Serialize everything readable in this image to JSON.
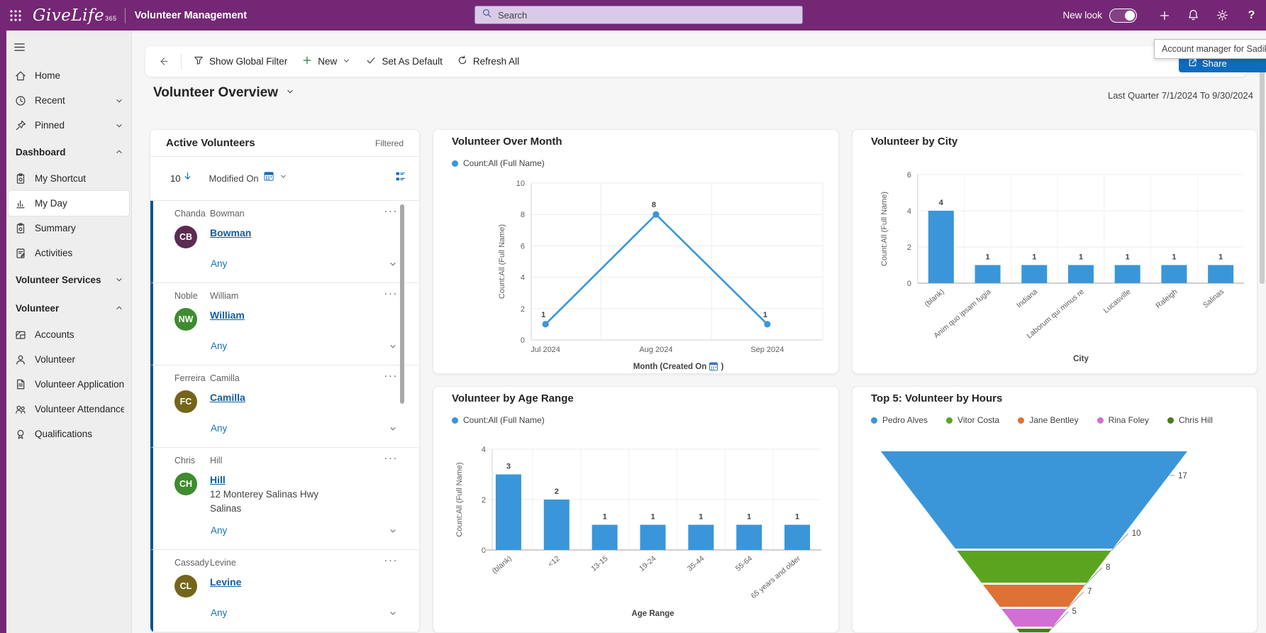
{
  "topbar": {
    "logo_text": "GiveLife",
    "logo_sub": "365",
    "app_name": "Volunteer Management",
    "search_placeholder": "Search",
    "new_look_label": "New look",
    "header_color": "#742774"
  },
  "tooltip_text": "Account manager for Sadikshy",
  "share_button": {
    "label": "Share"
  },
  "toolbar": {
    "items": [
      {
        "label": "Show Global Filter",
        "icon": "filter-icon"
      },
      {
        "label": "New",
        "icon": "plus-icon",
        "chevron": true
      },
      {
        "label": "Set As Default",
        "icon": "check-icon"
      },
      {
        "label": "Refresh All",
        "icon": "refresh-icon"
      }
    ]
  },
  "page": {
    "title": "Volunteer Overview",
    "date_filter": "Last Quarter 7/1/2024 To 9/30/2024"
  },
  "sidebar": {
    "items": [
      {
        "type": "item",
        "label": "Home",
        "icon": "home-icon"
      },
      {
        "type": "item",
        "label": "Recent",
        "icon": "clock-icon",
        "chevron": "down"
      },
      {
        "type": "item",
        "label": "Pinned",
        "icon": "pin-icon",
        "chevron": "down"
      },
      {
        "type": "group",
        "label": "Dashboard",
        "chevron": "up"
      },
      {
        "type": "item",
        "label": "My Shortcut",
        "icon": "clipboard-gear-icon"
      },
      {
        "type": "item",
        "label": "My Day",
        "icon": "chart-icon",
        "selected": true
      },
      {
        "type": "item",
        "label": "Summary",
        "icon": "clipboard-gear-icon"
      },
      {
        "type": "item",
        "label": "Activities",
        "icon": "clipboard-pencil-icon"
      },
      {
        "type": "group",
        "label": "Volunteer Services",
        "chevron": "down"
      },
      {
        "type": "group",
        "label": "Volunteer",
        "chevron": "up"
      },
      {
        "type": "item",
        "label": "Accounts",
        "icon": "accounts-icon"
      },
      {
        "type": "item",
        "label": "Volunteer",
        "icon": "person-icon"
      },
      {
        "type": "item",
        "label": "Volunteer Applications",
        "icon": "document-icon"
      },
      {
        "type": "item",
        "label": "Volunteer Attendance",
        "icon": "attendance-icon"
      },
      {
        "type": "item",
        "label": "Qualifications",
        "icon": "qualifications-icon"
      }
    ]
  },
  "active_volunteers": {
    "title": "Active Volunteers",
    "filtered_label": "Filtered",
    "record_count": "10",
    "sort_field": "Modified On",
    "records": [
      {
        "first": "Chanda",
        "last": "Bowman",
        "initials": "CB",
        "avatar_color": "#5c2b51",
        "link": "Bowman",
        "address": [],
        "any_label": "Any"
      },
      {
        "first": "Noble",
        "last": "William",
        "initials": "NW",
        "avatar_color": "#3e8c2f",
        "link": "William",
        "address": [],
        "any_label": "Any"
      },
      {
        "first": "Ferreira",
        "last": "Camilla",
        "initials": "FC",
        "avatar_color": "#75651b",
        "link": "Camilla",
        "address": [],
        "any_label": "Any"
      },
      {
        "first": "Chris",
        "last": "Hill",
        "initials": "CH",
        "avatar_color": "#3e8c2f",
        "link": "Hill",
        "address": [
          "12 Monterey Salinas Hwy",
          "Salinas"
        ],
        "any_label": "Any"
      },
      {
        "first": "Cassady",
        "last": "Levine",
        "initials": "CL",
        "avatar_color": "#75651b",
        "link": "Levine",
        "address": [],
        "any_label": "Any"
      }
    ]
  },
  "chart_data": [
    {
      "id": "volunteer_over_month",
      "type": "line",
      "title": "Volunteer Over Month",
      "legend": "Count:All (Full Name)",
      "categories": [
        "Jul 2024",
        "Aug 2024",
        "Sep 2024"
      ],
      "values": [
        1,
        8,
        1
      ],
      "ylabel": "Count:All (Full Name)",
      "xlabel": "Month (Created On",
      "xlabel_suffix": ")",
      "xlabel_icon": "calendar-icon",
      "ylim": [
        0,
        10
      ],
      "yticks": [
        0,
        2,
        4,
        6,
        8,
        10
      ],
      "grid": true,
      "color": "#3a96d9"
    },
    {
      "id": "volunteer_by_city",
      "type": "bar",
      "title": "Volunteer by City",
      "categories": [
        "(blank)",
        "Anim quo ipsam fugia",
        "Indiana",
        "Laborum qui minus re",
        "Lucasville",
        "Raleigh",
        "Salinas"
      ],
      "values": [
        4,
        1,
        1,
        1,
        1,
        1,
        1
      ],
      "ylabel": "Count:All (Full Name)",
      "xlabel": "City",
      "ylim": [
        0,
        6
      ],
      "yticks": [
        0,
        2,
        4,
        6
      ],
      "grid": true,
      "color": "#3a96d9"
    },
    {
      "id": "volunteer_by_age_range",
      "type": "bar",
      "title": "Volunteer by Age Range",
      "legend": "Count:All (Full Name)",
      "categories": [
        "(blank)",
        "<12",
        "13-15",
        "19-24",
        "35-44",
        "55-64",
        "65 years and older"
      ],
      "values": [
        3,
        2,
        1,
        1,
        1,
        1,
        1
      ],
      "ylabel": "Count:All (Full Name)",
      "xlabel": "Age Range",
      "ylim": [
        0,
        4
      ],
      "yticks": [
        0,
        2,
        4
      ],
      "grid": true,
      "color": "#3a96d9"
    },
    {
      "id": "top5_volunteer_by_hours",
      "type": "funnel",
      "title": "Top 5: Volunteer by Hours",
      "legend_position": "top",
      "series": [
        {
          "name": "Pedro Alves",
          "value": 17,
          "color": "#3a96d9"
        },
        {
          "name": "Vitor Costa",
          "value": 10,
          "color": "#5ba420"
        },
        {
          "name": "Jane Bentley",
          "value": 8,
          "color": "#dd7234"
        },
        {
          "name": "Rina Foley",
          "value": 7,
          "color": "#d36fd3"
        },
        {
          "name": "Chris Hill",
          "value": 5,
          "color": "#497d14"
        }
      ]
    }
  ]
}
